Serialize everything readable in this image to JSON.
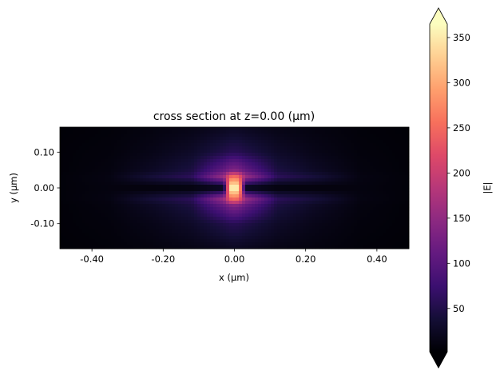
{
  "chart_data": {
    "type": "heatmap",
    "title": "cross section at z=0.00 (µm)",
    "xlabel": "x (µm)",
    "ylabel": "y (µm)",
    "xlim": [
      -0.49,
      0.49
    ],
    "ylim": [
      -0.17,
      0.17
    ],
    "xticks": [
      -0.4,
      -0.2,
      0.0,
      0.2,
      0.4
    ],
    "xtick_labels": [
      "-0.40",
      "-0.20",
      "0.00",
      "0.20",
      "0.40"
    ],
    "yticks": [
      0.1,
      0.0,
      -0.1
    ],
    "ytick_labels": [
      "0.10",
      "0.00",
      "-0.10"
    ],
    "colormap": "magma",
    "colorbar": {
      "label": "|E|",
      "range": [
        2,
        365
      ],
      "extend": "both",
      "ticks": [
        50,
        100,
        150,
        200,
        250,
        300,
        350
      ],
      "tick_labels": [
        "50",
        "100",
        "150",
        "200",
        "250",
        "300",
        "350"
      ]
    },
    "grid": false,
    "x": [
      -0.49,
      -0.35,
      -0.23,
      -0.12,
      -0.03,
      -0.012,
      0,
      0.012,
      0.03,
      0.12,
      0.23,
      0.35,
      0.49
    ],
    "y": [
      0.17,
      0.1,
      0.05,
      0.03,
      0,
      -0.03,
      -0.05,
      -0.1,
      -0.17
    ],
    "z": [
      [
        4,
        6,
        10,
        14,
        20,
        22,
        22,
        22,
        20,
        14,
        10,
        6,
        4
      ],
      [
        5,
        8,
        16,
        28,
        50,
        55,
        56,
        55,
        50,
        28,
        16,
        8,
        5
      ],
      [
        5,
        10,
        25,
        45,
        110,
        130,
        135,
        130,
        110,
        45,
        25,
        10,
        5
      ],
      [
        6,
        12,
        40,
        60,
        160,
        250,
        260,
        250,
        160,
        60,
        40,
        12,
        6
      ],
      [
        6,
        10,
        5,
        4,
        3,
        365,
        365,
        365,
        3,
        4,
        5,
        10,
        6
      ],
      [
        6,
        12,
        40,
        60,
        160,
        250,
        260,
        250,
        160,
        60,
        40,
        12,
        6
      ],
      [
        5,
        10,
        25,
        45,
        110,
        130,
        135,
        130,
        110,
        45,
        25,
        10,
        5
      ],
      [
        5,
        8,
        16,
        28,
        50,
        55,
        56,
        55,
        50,
        28,
        16,
        8,
        5
      ],
      [
        4,
        6,
        10,
        14,
        20,
        22,
        22,
        22,
        20,
        14,
        10,
        6,
        4
      ]
    ]
  }
}
